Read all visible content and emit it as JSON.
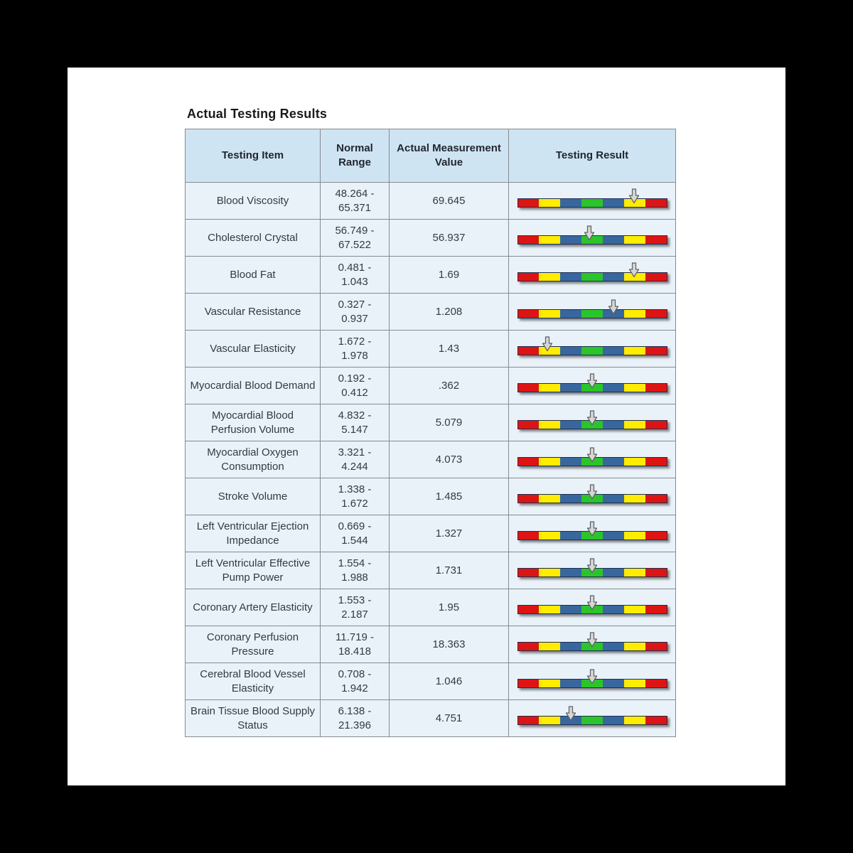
{
  "page": {
    "title": "Actual Testing Results"
  },
  "table": {
    "headers": [
      "Testing Item",
      "Normal Range",
      "Actual Measurement Value",
      "Testing Result"
    ],
    "rows": [
      {
        "item": "Blood Viscosity",
        "range": "48.264 - 65.371",
        "value": "69.645",
        "marker": 0.78
      },
      {
        "item": "Cholesterol Crystal",
        "range": "56.749 - 67.522",
        "value": "56.937",
        "marker": 0.48
      },
      {
        "item": "Blood Fat",
        "range": "0.481 - 1.043",
        "value": "1.69",
        "marker": 0.78
      },
      {
        "item": "Vascular Resistance",
        "range": "0.327 - 0.937",
        "value": "1.208",
        "marker": 0.64
      },
      {
        "item": "Vascular Elasticity",
        "range": "1.672 - 1.978",
        "value": "1.43",
        "marker": 0.2
      },
      {
        "item": "Myocardial Blood Demand",
        "range": "0.192 - 0.412",
        "value": ".362",
        "marker": 0.5
      },
      {
        "item": "Myocardial Blood Perfusion Volume",
        "range": "4.832 - 5.147",
        "value": "5.079",
        "marker": 0.5
      },
      {
        "item": "Myocardial Oxygen Consumption",
        "range": "3.321 - 4.244",
        "value": "4.073",
        "marker": 0.5
      },
      {
        "item": "Stroke Volume",
        "range": "1.338 - 1.672",
        "value": "1.485",
        "marker": 0.5
      },
      {
        "item": "Left Ventricular Ejection Impedance",
        "range": "0.669 - 1.544",
        "value": "1.327",
        "marker": 0.5
      },
      {
        "item": "Left Ventricular Effective Pump Power",
        "range": "1.554 - 1.988",
        "value": "1.731",
        "marker": 0.5
      },
      {
        "item": "Coronary Artery Elasticity",
        "range": "1.553 - 2.187",
        "value": "1.95",
        "marker": 0.5
      },
      {
        "item": "Coronary Perfusion Pressure",
        "range": "11.719 - 18.418",
        "value": "18.363",
        "marker": 0.5
      },
      {
        "item": "Cerebral Blood Vessel Elasticity",
        "range": "0.708 - 1.942",
        "value": "1.046",
        "marker": 0.5
      },
      {
        "item": "Brain Tissue Blood Supply Status",
        "range": "6.138 - 21.396",
        "value": "4.751",
        "marker": 0.36
      }
    ]
  },
  "gauge": {
    "segment_colors": [
      "#dd1414",
      "#ffec00",
      "#38679e",
      "#2bc42b",
      "#38679e",
      "#ffec00",
      "#dd1414"
    ],
    "marker_icon": "down-arrow",
    "marker_fill": "#d6d6d6",
    "marker_outline": "#5f5f5f"
  }
}
